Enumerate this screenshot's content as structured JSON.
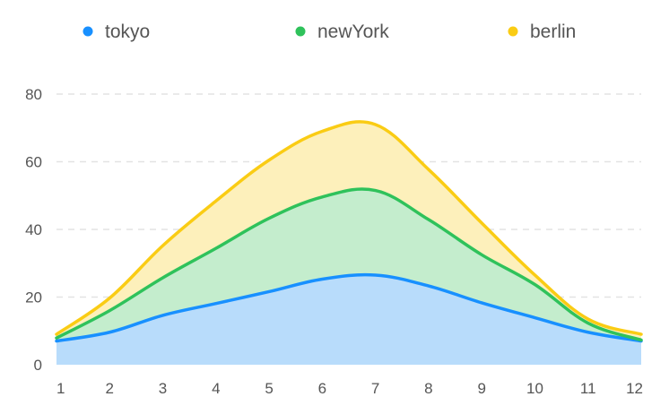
{
  "chart_data": {
    "type": "area",
    "stacked": true,
    "x": [
      "1",
      "2",
      "3",
      "4",
      "5",
      "6",
      "7",
      "8",
      "9",
      "10",
      "11",
      "12"
    ],
    "series": [
      {
        "name": "tokyo",
        "color": "#1890ff",
        "fill": "#b8dcfb",
        "values": [
          7.0,
          9.6,
          14.6,
          18.1,
          21.6,
          25.3,
          26.5,
          23.3,
          18.3,
          13.9,
          9.6,
          7.0
        ]
      },
      {
        "name": "newYork",
        "color": "#2fc25b",
        "fill": "#c4edcd",
        "values": [
          0.9,
          6.4,
          11.1,
          16.3,
          21.7,
          24.3,
          25.0,
          19.6,
          14.2,
          9.8,
          2.7,
          0.3
        ]
      },
      {
        "name": "berlin",
        "color": "#facc14",
        "fill": "#fdf0bb",
        "values": [
          1.1,
          3.7,
          9.5,
          14.0,
          17.2,
          19.4,
          19.5,
          14.8,
          9.4,
          2.8,
          1.2,
          1.7
        ]
      }
    ],
    "y_ticks": [
      "0",
      "20",
      "40",
      "60",
      "80"
    ],
    "ylim": [
      0,
      80
    ],
    "grid": true,
    "legend": "top"
  }
}
